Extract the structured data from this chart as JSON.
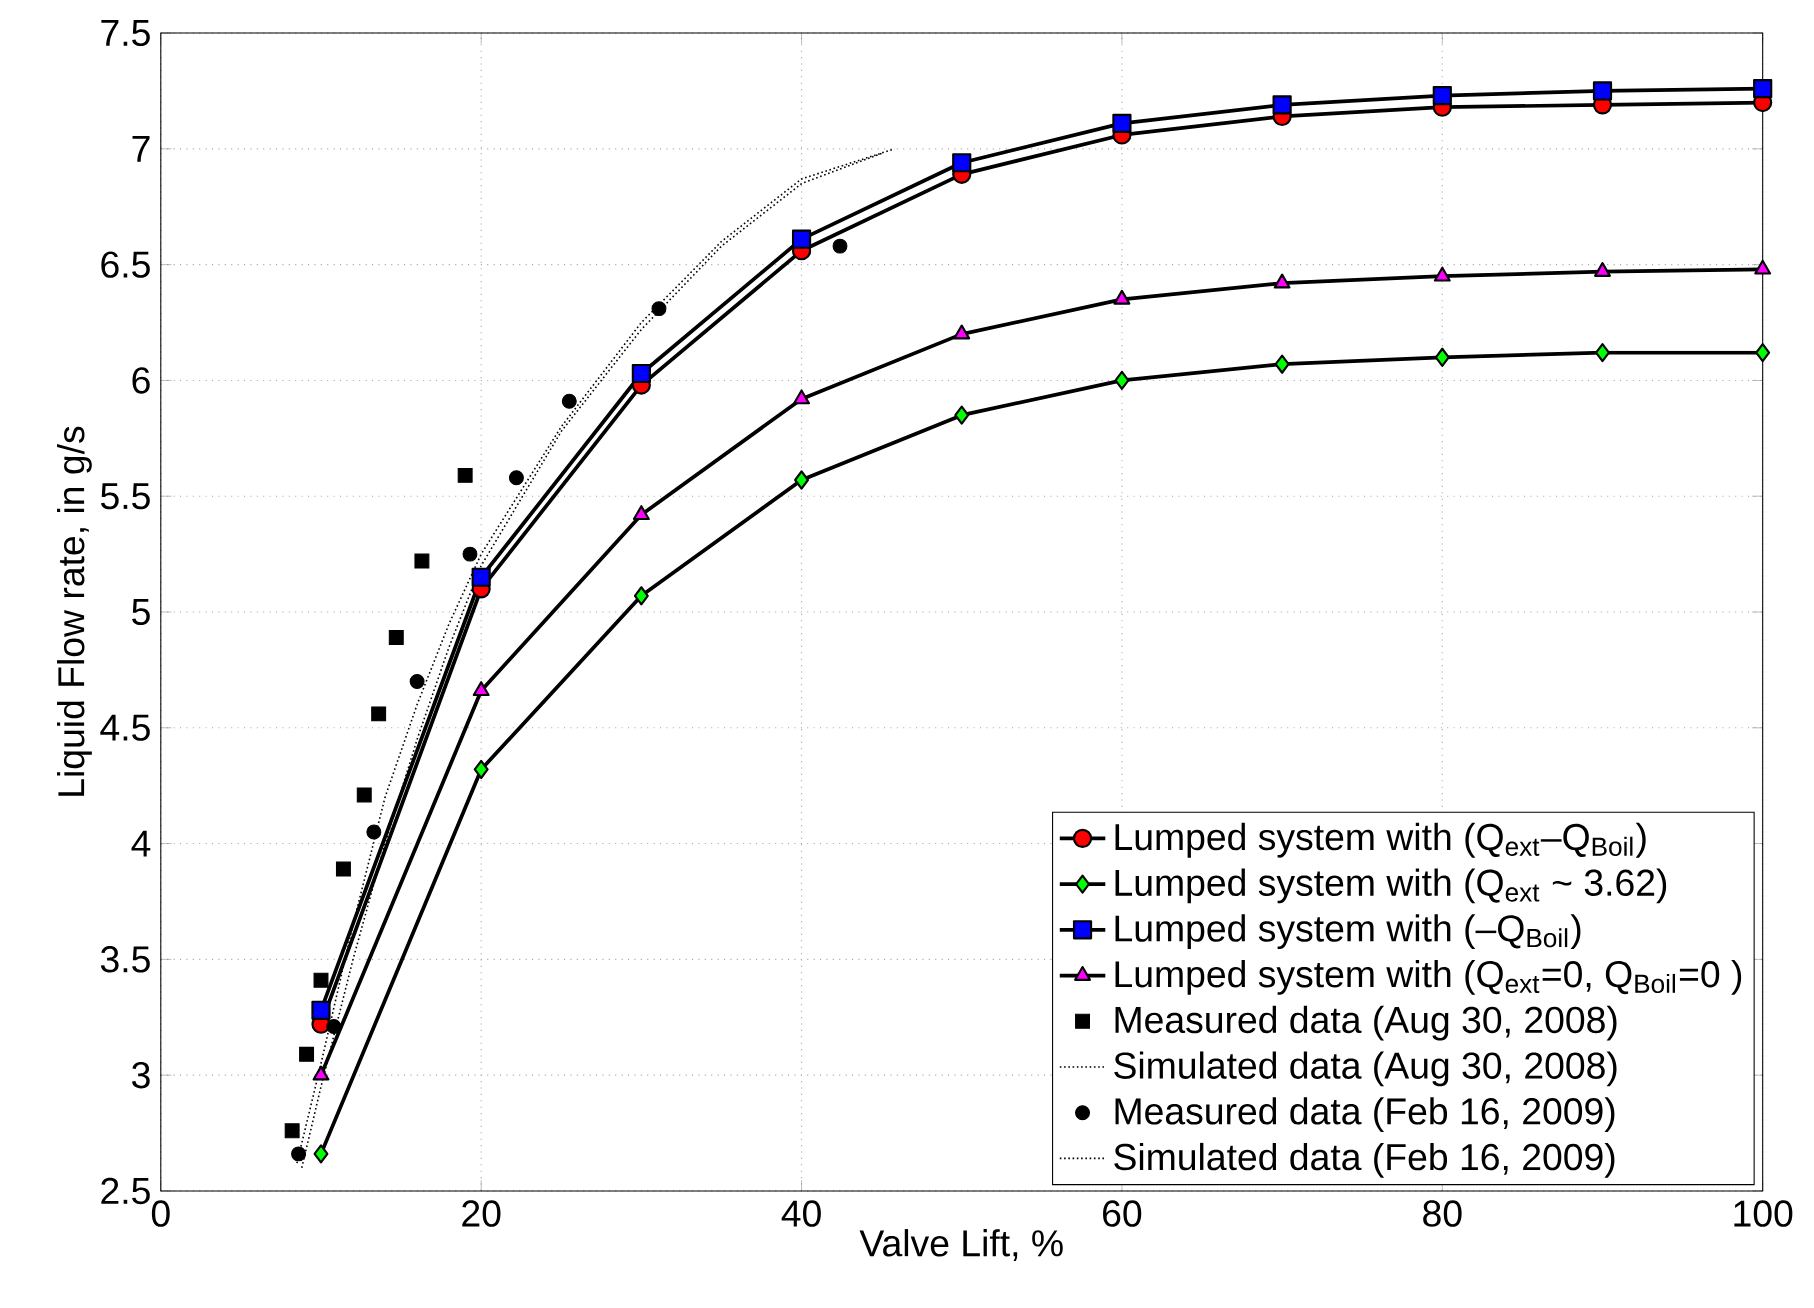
{
  "chart_data": {
    "type": "line",
    "xlabel": "Valve Lift, %",
    "ylabel": "Liquid Flow rate, in g/s",
    "xlim": [
      0,
      100
    ],
    "ylim": [
      2.5,
      7.5
    ],
    "xticks": [
      0,
      20,
      40,
      60,
      80,
      100
    ],
    "yticks": [
      2.5,
      3,
      3.5,
      4,
      4.5,
      5,
      5.5,
      6,
      6.5,
      7,
      7.5
    ],
    "grid": true,
    "legend": "bottom right",
    "series": [
      {
        "name": "Lumped system with (Q$_{ext}$–Q$_{Boil}$)",
        "marker": "circle",
        "line_style": "solid",
        "color": "#ff0000",
        "x": [
          10,
          20,
          30,
          40,
          50,
          60,
          70,
          80,
          90,
          100
        ],
        "values": [
          3.22,
          5.1,
          5.98,
          6.56,
          6.89,
          7.06,
          7.14,
          7.18,
          7.19,
          7.2
        ]
      },
      {
        "name": "Lumped system with (Q$_{ext}$ ~ 3.62)",
        "marker": "diamond",
        "line_style": "solid",
        "color": "#00ff00",
        "x": [
          10,
          20,
          30,
          40,
          50,
          60,
          70,
          80,
          90,
          100
        ],
        "values": [
          2.66,
          4.32,
          5.07,
          5.57,
          5.85,
          6.0,
          6.07,
          6.1,
          6.12,
          6.12
        ]
      },
      {
        "name": "Lumped system with (–Q$_{Boil}$)",
        "marker": "square",
        "line_style": "solid",
        "color": "#0000ff",
        "x": [
          10,
          20,
          30,
          40,
          50,
          60,
          70,
          80,
          90,
          100
        ],
        "values": [
          3.28,
          5.15,
          6.03,
          6.61,
          6.94,
          7.11,
          7.19,
          7.23,
          7.25,
          7.26
        ]
      },
      {
        "name": "Lumped system with (Q$_{ext}$=0, Q$_{Boil}$=0 )",
        "marker": "triangle",
        "line_style": "solid",
        "color": "#ff00ff",
        "x": [
          10,
          20,
          30,
          40,
          50,
          60,
          70,
          80,
          90,
          100
        ],
        "values": [
          3.0,
          4.66,
          5.42,
          5.92,
          6.2,
          6.35,
          6.42,
          6.45,
          6.47,
          6.48
        ]
      },
      {
        "name": "Measured data (Aug 30, 2008)",
        "type": "scatter",
        "marker": "square",
        "color": "#000000",
        "x": [
          8.2,
          9.1,
          10.0,
          11.4,
          12.7,
          13.6,
          14.7,
          16.3,
          19.0
        ],
        "values": [
          2.76,
          3.09,
          3.41,
          3.89,
          4.21,
          4.56,
          4.89,
          5.22,
          5.59
        ]
      },
      {
        "name": "Simulated data (Aug 30, 2008)",
        "marker": "none",
        "line_style": "dotted",
        "color": "#000000",
        "x": [
          8.5,
          10,
          12,
          14,
          16,
          18,
          20,
          25,
          30,
          35,
          40,
          45.8
        ],
        "values": [
          2.62,
          3.05,
          3.65,
          4.2,
          4.6,
          4.95,
          5.25,
          5.8,
          6.25,
          6.6,
          6.87,
          7.0
        ]
      },
      {
        "name": "Measured data (Feb 16, 2009)",
        "type": "scatter",
        "marker": "circle",
        "color": "#000000",
        "x": [
          8.6,
          10.8,
          13.3,
          16.0,
          19.3,
          22.2,
          25.5,
          31.1,
          42.4
        ],
        "values": [
          2.66,
          3.21,
          4.05,
          4.7,
          5.25,
          5.58,
          5.91,
          6.31,
          6.58
        ]
      },
      {
        "name": "Simulated data (Feb 16, 2009)",
        "marker": "none",
        "line_style": "dotted",
        "color": "#000000",
        "x": [
          8.8,
          10,
          12,
          14,
          16,
          18,
          20,
          25,
          30,
          35,
          40,
          45
        ],
        "values": [
          2.6,
          2.95,
          3.5,
          4.0,
          4.45,
          4.85,
          5.2,
          5.78,
          6.22,
          6.58,
          6.85,
          6.98
        ]
      }
    ]
  }
}
